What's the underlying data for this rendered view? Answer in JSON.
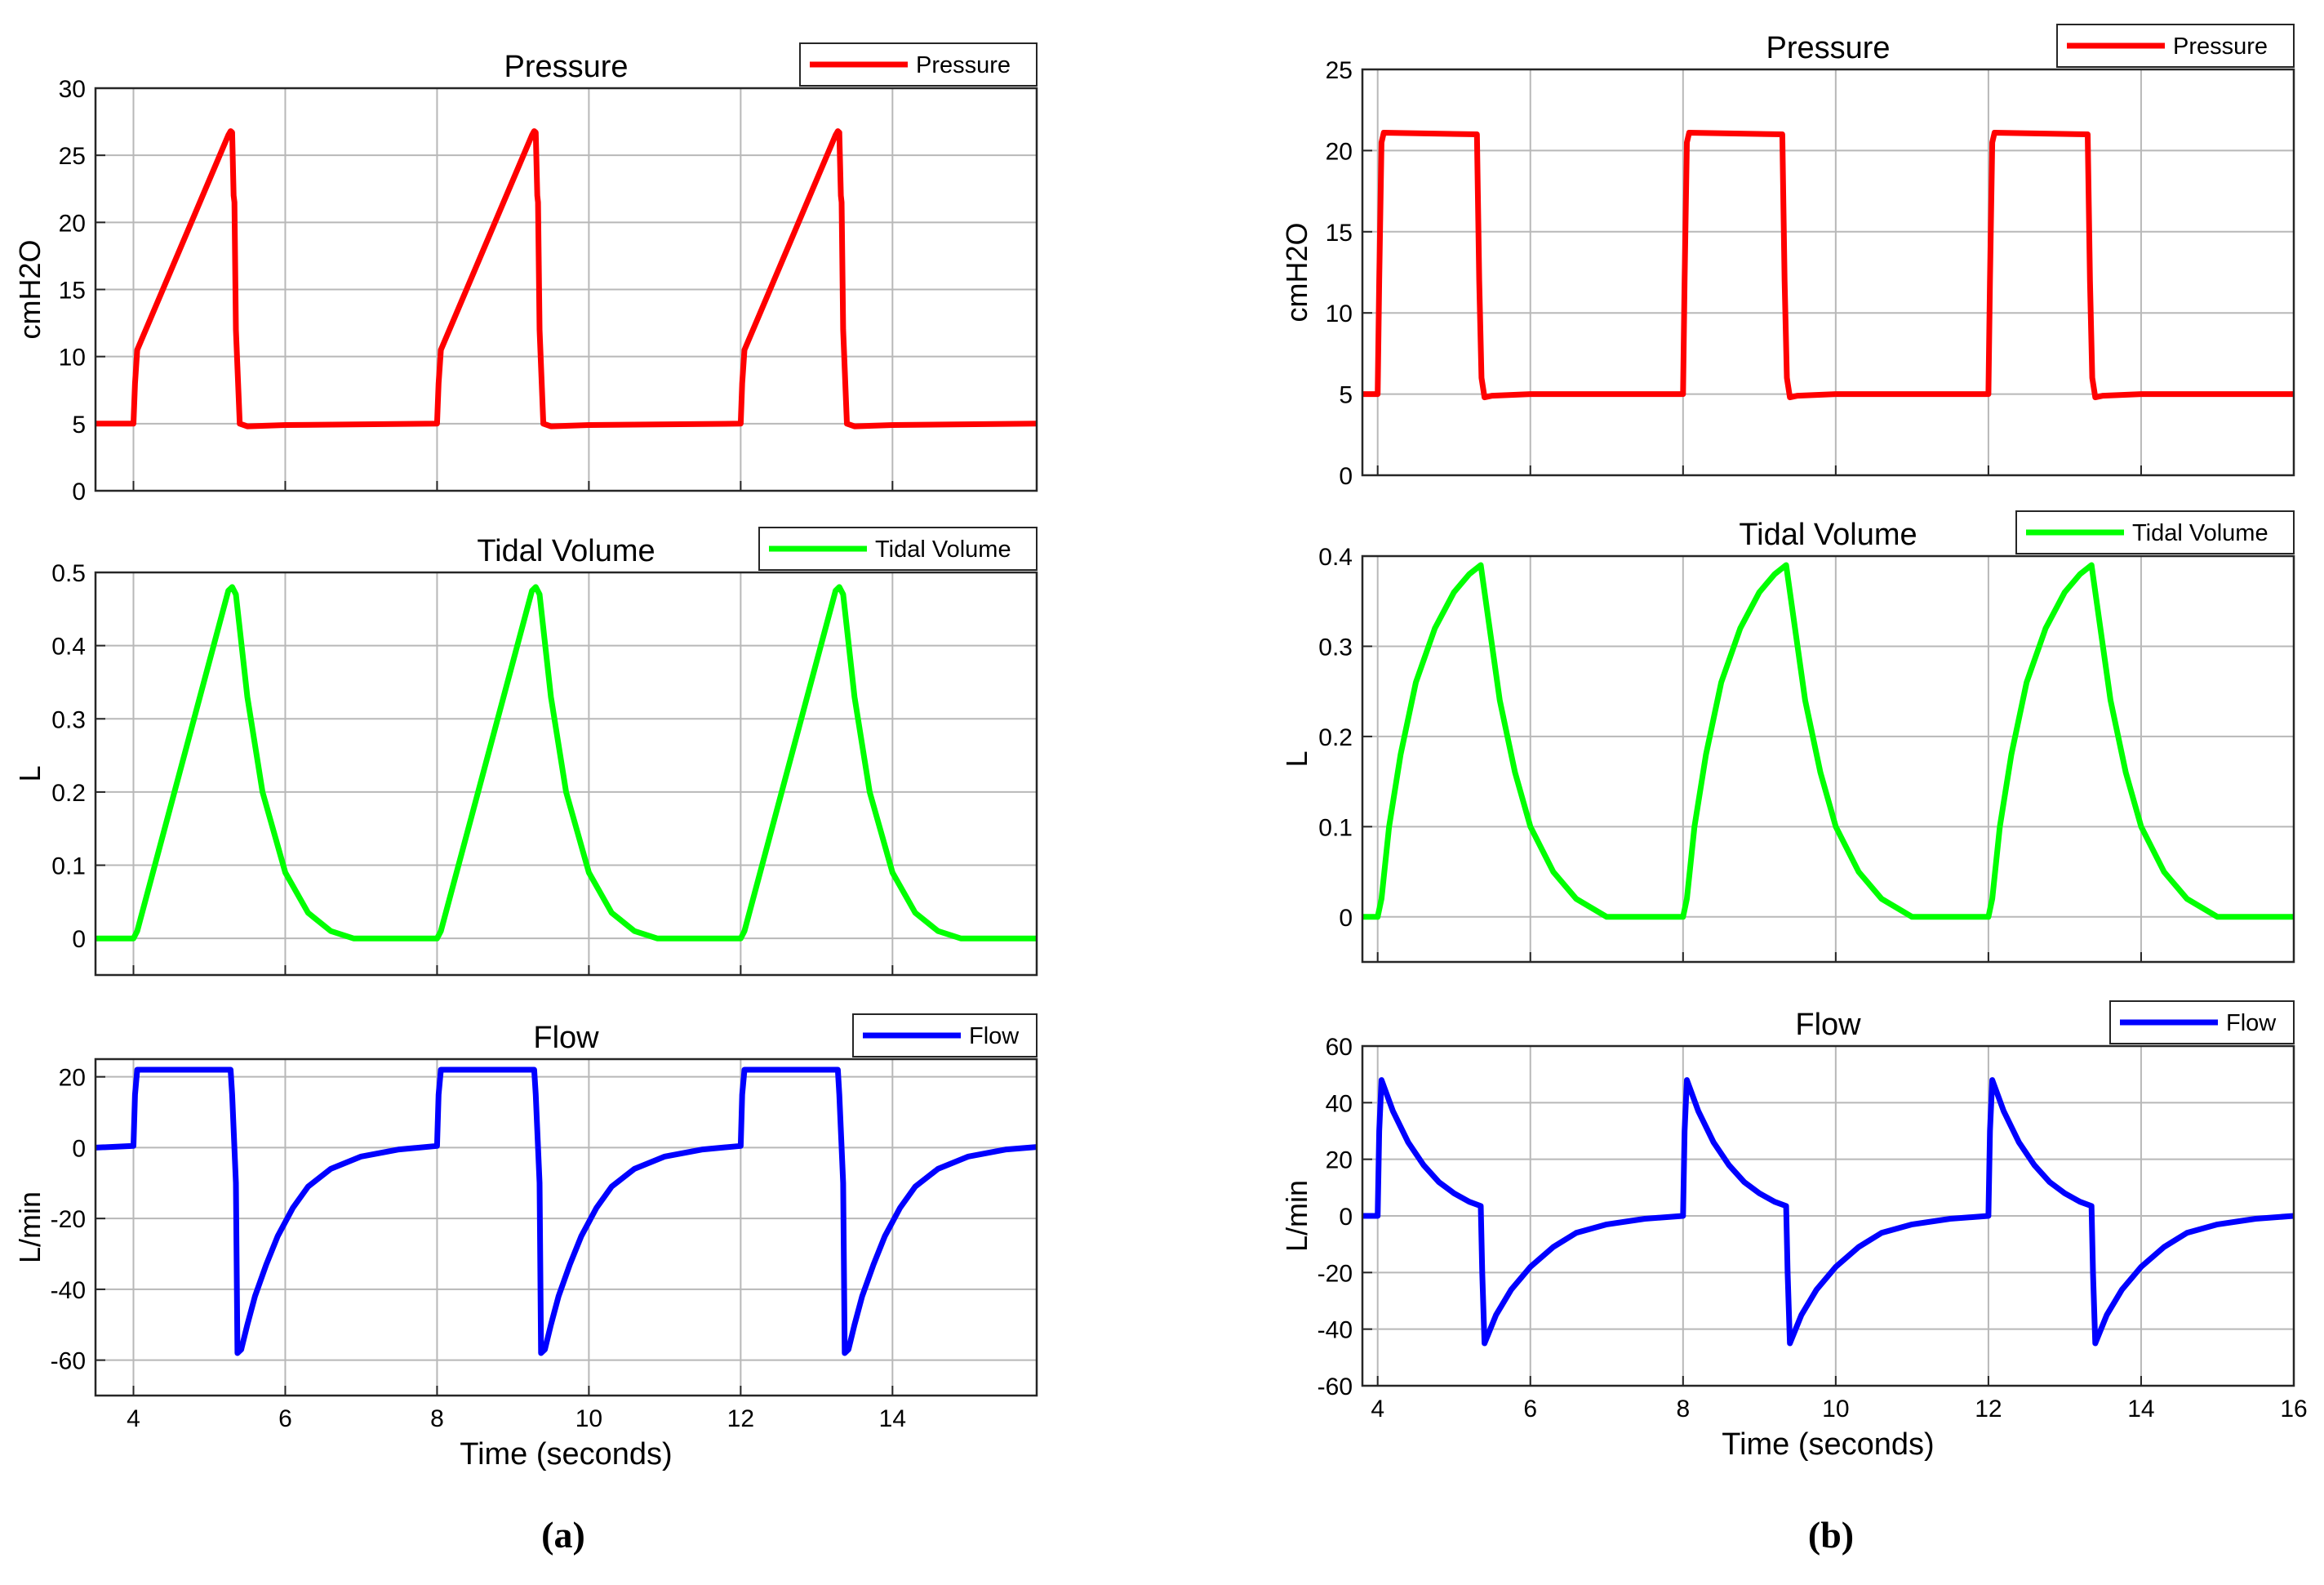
{
  "figure": {
    "panels": [
      {
        "label": "(a)",
        "xlabel": "Time (seconds)"
      },
      {
        "label": "(b)",
        "xlabel": "Time (seconds)"
      }
    ]
  },
  "chart_data": [
    {
      "type": "line",
      "panel": "a",
      "id": "a-pressure",
      "title": "Pressure",
      "xlabel": "",
      "ylabel": "cmH2O",
      "xlim": [
        3.5,
        15.9
      ],
      "ylim": [
        0,
        30
      ],
      "xticks": [
        4,
        6,
        8,
        10,
        12,
        14
      ],
      "yticks": [
        0,
        5,
        10,
        15,
        20,
        25,
        30
      ],
      "show_xtick_labels": false,
      "grid": true,
      "legend": "top-right",
      "series": [
        {
          "name": "Pressure",
          "color": "#ff0000",
          "x": [
            3.5,
            4.0,
            4.02,
            4.05,
            5.25,
            5.28,
            5.3,
            5.32,
            5.33,
            5.35,
            5.4,
            5.5,
            6.0,
            8.0,
            8.02,
            8.05,
            9.25,
            9.28,
            9.3,
            9.32,
            9.33,
            9.35,
            9.4,
            9.5,
            10.0,
            12.0,
            12.02,
            12.05,
            13.25,
            13.28,
            13.3,
            13.32,
            13.33,
            13.35,
            13.4,
            13.5,
            14.0,
            15.9
          ],
          "values": [
            5,
            5,
            8,
            10.5,
            26.5,
            26.8,
            26.7,
            22,
            21.5,
            12,
            5,
            4.8,
            4.9,
            5,
            8,
            10.5,
            26.5,
            26.8,
            26.7,
            22,
            21.5,
            12,
            5,
            4.8,
            4.9,
            5,
            8,
            10.5,
            26.5,
            26.8,
            26.7,
            22,
            21.5,
            12,
            5,
            4.8,
            4.9,
            5
          ]
        }
      ]
    },
    {
      "type": "line",
      "panel": "a",
      "id": "a-volume",
      "title": "Tidal Volume",
      "xlabel": "",
      "ylabel": "L",
      "xlim": [
        3.5,
        15.9
      ],
      "ylim": [
        -0.05,
        0.5
      ],
      "xticks": [
        4,
        6,
        8,
        10,
        12,
        14
      ],
      "yticks": [
        0,
        0.1,
        0.2,
        0.3,
        0.4,
        0.5
      ],
      "show_xtick_labels": false,
      "grid": true,
      "legend": "top-right",
      "series": [
        {
          "name": "Tidal Volume",
          "color": "#00ff00",
          "x": [
            3.5,
            4.0,
            4.05,
            5.25,
            5.3,
            5.35,
            5.5,
            5.7,
            6.0,
            6.3,
            6.6,
            6.9,
            8.0,
            8.05,
            9.25,
            9.3,
            9.35,
            9.5,
            9.7,
            10.0,
            10.3,
            10.6,
            10.9,
            12.0,
            12.05,
            13.25,
            13.3,
            13.35,
            13.5,
            13.7,
            14.0,
            14.3,
            14.6,
            14.9,
            15.9
          ],
          "values": [
            0,
            0,
            0.01,
            0.475,
            0.48,
            0.47,
            0.33,
            0.2,
            0.09,
            0.035,
            0.01,
            0,
            0,
            0.01,
            0.475,
            0.48,
            0.47,
            0.33,
            0.2,
            0.09,
            0.035,
            0.01,
            0,
            0,
            0.01,
            0.475,
            0.48,
            0.47,
            0.33,
            0.2,
            0.09,
            0.035,
            0.01,
            0,
            0
          ]
        }
      ]
    },
    {
      "type": "line",
      "panel": "a",
      "id": "a-flow",
      "title": "Flow",
      "xlabel": "Time (seconds)",
      "ylabel": "L/min",
      "xlim": [
        3.5,
        15.9
      ],
      "ylim": [
        -70,
        25
      ],
      "xticks": [
        4,
        6,
        8,
        10,
        12,
        14
      ],
      "yticks": [
        -60,
        -40,
        -20,
        0,
        20
      ],
      "show_xtick_labels": true,
      "grid": true,
      "legend": "top-right",
      "series": [
        {
          "name": "Flow",
          "color": "#0000ff",
          "x": [
            3.5,
            4.0,
            4.02,
            4.05,
            5.25,
            5.28,
            5.3,
            5.35,
            5.37,
            5.42,
            5.5,
            5.6,
            5.75,
            5.9,
            6.1,
            6.3,
            6.6,
            7.0,
            7.5,
            8.0,
            8.02,
            8.05,
            9.25,
            9.28,
            9.3,
            9.35,
            9.37,
            9.42,
            9.5,
            9.6,
            9.75,
            9.9,
            10.1,
            10.3,
            10.6,
            11.0,
            11.5,
            12.0,
            12.02,
            12.05,
            13.25,
            13.28,
            13.3,
            13.35,
            13.37,
            13.42,
            13.5,
            13.6,
            13.75,
            13.9,
            14.1,
            14.3,
            14.6,
            15.0,
            15.5,
            15.9
          ],
          "values": [
            0,
            0.5,
            15,
            22,
            22,
            22,
            15,
            -10,
            -58,
            -57,
            -50,
            -42,
            -33,
            -25,
            -17,
            -11,
            -6,
            -2.5,
            -0.5,
            0.5,
            15,
            22,
            22,
            22,
            15,
            -10,
            -58,
            -57,
            -50,
            -42,
            -33,
            -25,
            -17,
            -11,
            -6,
            -2.5,
            -0.5,
            0.5,
            15,
            22,
            22,
            22,
            15,
            -10,
            -58,
            -57,
            -50,
            -42,
            -33,
            -25,
            -17,
            -11,
            -6,
            -2.5,
            -0.5,
            0.2
          ]
        }
      ]
    },
    {
      "type": "line",
      "panel": "b",
      "id": "b-pressure",
      "title": "Pressure",
      "xlabel": "",
      "ylabel": "cmH2O",
      "xlim": [
        3.8,
        16
      ],
      "ylim": [
        0,
        25
      ],
      "xticks": [
        4,
        6,
        8,
        10,
        12,
        14,
        16
      ],
      "yticks": [
        0,
        5,
        10,
        15,
        20,
        25
      ],
      "show_xtick_labels": false,
      "grid": true,
      "legend": "top-right",
      "series": [
        {
          "name": "Pressure",
          "color": "#ff0000",
          "x": [
            3.8,
            4.0,
            4.02,
            4.05,
            4.08,
            5.3,
            5.33,
            5.36,
            5.4,
            5.5,
            6.0,
            8.0,
            8.02,
            8.05,
            8.08,
            9.3,
            9.33,
            9.36,
            9.4,
            9.5,
            10.0,
            12.0,
            12.02,
            12.05,
            12.08,
            13.3,
            13.33,
            13.36,
            13.4,
            13.5,
            14.0,
            16.0
          ],
          "values": [
            5,
            5,
            12,
            20.5,
            21.1,
            21,
            12,
            6,
            4.8,
            4.9,
            5,
            5,
            12,
            20.5,
            21.1,
            21,
            12,
            6,
            4.8,
            4.9,
            5,
            5,
            12,
            20.5,
            21.1,
            21,
            12,
            6,
            4.8,
            4.9,
            5,
            5
          ]
        }
      ]
    },
    {
      "type": "line",
      "panel": "b",
      "id": "b-volume",
      "title": "Tidal Volume",
      "xlabel": "",
      "ylabel": "L",
      "xlim": [
        3.8,
        16
      ],
      "ylim": [
        -0.05,
        0.4
      ],
      "xticks": [
        4,
        6,
        8,
        10,
        12,
        14,
        16
      ],
      "yticks": [
        0,
        0.1,
        0.2,
        0.3,
        0.4
      ],
      "show_xtick_labels": false,
      "grid": true,
      "legend": "top-right",
      "series": [
        {
          "name": "Tidal Volume",
          "color": "#00ff00",
          "x": [
            3.8,
            4.0,
            4.05,
            4.15,
            4.3,
            4.5,
            4.75,
            5.0,
            5.2,
            5.35,
            5.45,
            5.6,
            5.8,
            6.0,
            6.3,
            6.6,
            7.0,
            8.0,
            8.05,
            8.15,
            8.3,
            8.5,
            8.75,
            9.0,
            9.2,
            9.35,
            9.45,
            9.6,
            9.8,
            10.0,
            10.3,
            10.6,
            11.0,
            12.0,
            12.05,
            12.15,
            12.3,
            12.5,
            12.75,
            13.0,
            13.2,
            13.35,
            13.45,
            13.6,
            13.8,
            14.0,
            14.3,
            14.6,
            15.0,
            16.0
          ],
          "values": [
            0,
            0,
            0.02,
            0.1,
            0.18,
            0.26,
            0.32,
            0.36,
            0.38,
            0.39,
            0.33,
            0.24,
            0.16,
            0.1,
            0.05,
            0.02,
            0,
            0,
            0.02,
            0.1,
            0.18,
            0.26,
            0.32,
            0.36,
            0.38,
            0.39,
            0.33,
            0.24,
            0.16,
            0.1,
            0.05,
            0.02,
            0,
            0,
            0.02,
            0.1,
            0.18,
            0.26,
            0.32,
            0.36,
            0.38,
            0.39,
            0.33,
            0.24,
            0.16,
            0.1,
            0.05,
            0.02,
            0,
            0
          ]
        }
      ]
    },
    {
      "type": "line",
      "panel": "b",
      "id": "b-flow",
      "title": "Flow",
      "xlabel": "Time (seconds)",
      "ylabel": "L/min",
      "xlim": [
        3.8,
        16
      ],
      "ylim": [
        -60,
        60
      ],
      "xticks": [
        4,
        6,
        8,
        10,
        12,
        14,
        16
      ],
      "yticks": [
        -60,
        -40,
        -20,
        0,
        20,
        40,
        60
      ],
      "show_xtick_labels": true,
      "grid": true,
      "legend": "top-right",
      "series": [
        {
          "name": "Flow",
          "color": "#0000ff",
          "x": [
            3.8,
            4.0,
            4.02,
            4.05,
            4.2,
            4.4,
            4.6,
            4.8,
            5.0,
            5.2,
            5.35,
            5.37,
            5.4,
            5.55,
            5.75,
            6.0,
            6.3,
            6.6,
            7.0,
            7.5,
            8.0,
            8.02,
            8.05,
            8.2,
            8.4,
            8.6,
            8.8,
            9.0,
            9.2,
            9.35,
            9.37,
            9.4,
            9.55,
            9.75,
            10.0,
            10.3,
            10.6,
            11.0,
            11.5,
            12.0,
            12.02,
            12.05,
            12.2,
            12.4,
            12.6,
            12.8,
            13.0,
            13.2,
            13.35,
            13.37,
            13.4,
            13.55,
            13.75,
            14.0,
            14.3,
            14.6,
            15.0,
            15.5,
            16.0
          ],
          "values": [
            0,
            0,
            30,
            48,
            37,
            26,
            18,
            12,
            8,
            5,
            3.5,
            -20,
            -45,
            -35,
            -26,
            -18,
            -11,
            -6,
            -3,
            -1,
            0,
            30,
            48,
            37,
            26,
            18,
            12,
            8,
            5,
            3.5,
            -20,
            -45,
            -35,
            -26,
            -18,
            -11,
            -6,
            -3,
            -1,
            0,
            30,
            48,
            37,
            26,
            18,
            12,
            8,
            5,
            3.5,
            -20,
            -45,
            -35,
            -26,
            -18,
            -11,
            -6,
            -3,
            -1,
            0
          ]
        }
      ]
    }
  ]
}
